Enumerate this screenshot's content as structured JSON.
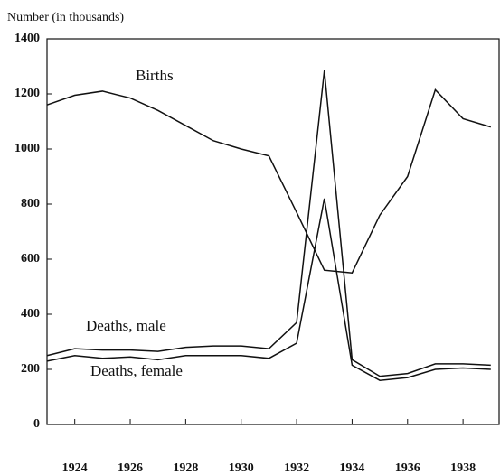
{
  "chart_data": {
    "type": "line",
    "y_label": "Number (in thousands)",
    "x": [
      1923,
      1924,
      1925,
      1926,
      1927,
      1928,
      1929,
      1930,
      1931,
      1932,
      1933,
      1934,
      1935,
      1936,
      1937,
      1938,
      1939
    ],
    "series": [
      {
        "name": "Births",
        "color": "#111111",
        "values": [
          1160,
          1195,
          1210,
          1185,
          1140,
          1085,
          1030,
          1000,
          975,
          770,
          560,
          550,
          760,
          900,
          1215,
          1110,
          1080
        ]
      },
      {
        "name": "Deaths, male",
        "color": "#111111",
        "values": [
          250,
          275,
          270,
          270,
          265,
          280,
          285,
          285,
          275,
          370,
          1285,
          235,
          175,
          185,
          220,
          220,
          215
        ]
      },
      {
        "name": "Deaths, female",
        "color": "#111111",
        "values": [
          230,
          250,
          240,
          245,
          235,
          250,
          250,
          250,
          240,
          295,
          820,
          215,
          160,
          170,
          200,
          205,
          200
        ]
      }
    ],
    "xlim": [
      1923,
      1939.3
    ],
    "ylim": [
      0,
      1400
    ],
    "xticks": [
      1924,
      1926,
      1928,
      1930,
      1932,
      1934,
      1936,
      1938
    ],
    "yticks": [
      0,
      200,
      400,
      600,
      800,
      1000,
      1200,
      1400
    ]
  }
}
